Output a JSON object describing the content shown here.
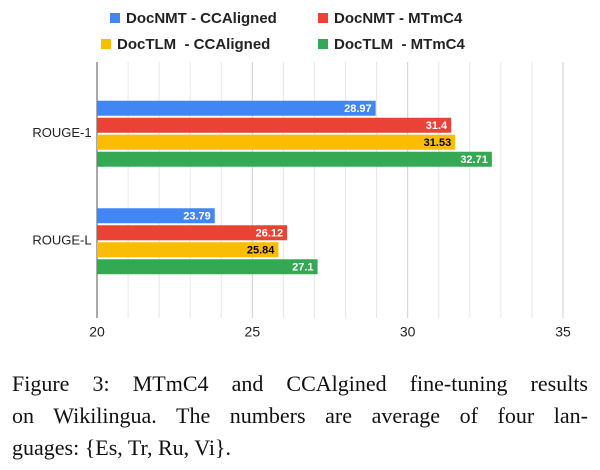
{
  "chart_data": {
    "type": "hbar",
    "categories": [
      "ROUGE-1",
      "ROUGE-L"
    ],
    "series": [
      {
        "name": "DocNMT - CCAligned",
        "color": "#4285f4",
        "value_label_color": "#ffffff",
        "values": [
          28.97,
          23.79
        ]
      },
      {
        "name": "DocNMT - MTmC4",
        "color": "#ea4335",
        "value_label_color": "#ffffff",
        "values": [
          31.4,
          26.12
        ]
      },
      {
        "name": "DocTLM  - CCAligned",
        "color": "#fbbc04",
        "value_label_color": "#000000",
        "values": [
          31.53,
          25.84
        ]
      },
      {
        "name": "DocTLM  - MTmC4",
        "color": "#34a853",
        "value_label_color": "#ffffff",
        "values": [
          32.71,
          27.1
        ]
      }
    ],
    "xlim": [
      20,
      35
    ],
    "xticks": [
      20,
      25,
      30,
      35
    ],
    "minor_xticks": [
      21,
      22,
      23,
      24,
      26,
      27,
      28,
      29,
      31,
      32,
      33,
      34
    ],
    "grid": true,
    "legend": "top"
  },
  "caption_lines": [
    "Figure 3: MTmC4 and CCAlgined fine-tuning results",
    "on Wikilingua. The numbers are average of four lan-",
    "guages: {Es, Tr, Ru, Vi}."
  ]
}
